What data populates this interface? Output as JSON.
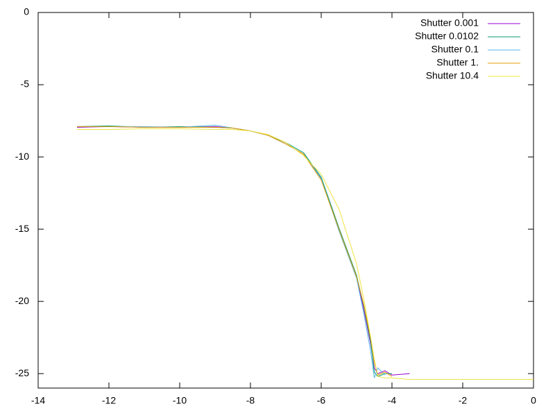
{
  "chart_data": {
    "type": "line",
    "x": [
      -12.9,
      -12,
      -11,
      -10,
      -9,
      -8.5,
      -8,
      -7.5,
      -7,
      -6.5,
      -6,
      -5.5,
      -5,
      -4.8,
      -4.6,
      -4.5,
      -4.4,
      -4.2,
      -4,
      -3.5,
      -2,
      0
    ],
    "series": [
      {
        "name": "Shutter 0.001",
        "color": "#9400d3",
        "values": [
          -7.95,
          -7.9,
          -7.95,
          -7.95,
          -7.9,
          -8.0,
          -8.2,
          -8.5,
          -9.1,
          -9.8,
          -11.5,
          -15.0,
          -18.3,
          -20.5,
          -23.0,
          -24.6,
          -25.0,
          -24.8,
          -25.1,
          -25.0,
          null,
          null
        ]
      },
      {
        "name": "Shutter 0.0102",
        "color": "#009e73",
        "values": [
          -7.9,
          -7.85,
          -7.95,
          -7.9,
          -7.95,
          -8.0,
          -8.2,
          -8.5,
          -9.0,
          -9.7,
          -11.4,
          -14.9,
          -18.2,
          -20.3,
          -22.8,
          -24.9,
          -25.2,
          -25.0,
          -25.0,
          null,
          null,
          null
        ]
      },
      {
        "name": "Shutter 0.1",
        "color": "#56b4e9",
        "values": [
          -7.9,
          -7.9,
          -7.9,
          -7.95,
          -7.8,
          -8.0,
          -8.2,
          -8.5,
          -9.1,
          -9.8,
          -11.5,
          -15.1,
          -18.4,
          -20.8,
          -23.5,
          -25.3,
          -24.6,
          -25.1,
          null,
          null,
          null,
          null
        ]
      },
      {
        "name": "Shutter 1.",
        "color": "#e69f00",
        "values": [
          -7.9,
          -7.9,
          -7.95,
          -7.95,
          -7.95,
          -8.0,
          -8.2,
          -8.5,
          -9.1,
          -9.8,
          -11.6,
          -15.0,
          -18.3,
          -20.2,
          -22.6,
          -24.2,
          -25.1,
          -24.9,
          -25.2,
          null,
          null,
          null
        ]
      },
      {
        "name": "Shutter 10.4",
        "color": "#f0e442",
        "values": [
          -8.1,
          -8.1,
          -8.05,
          -8.05,
          -8.1,
          -8.1,
          -8.2,
          -8.45,
          -9.0,
          -9.9,
          -11.2,
          -13.6,
          -17.4,
          -19.8,
          -22.5,
          -24.0,
          -25.2,
          -25.3,
          -25.3,
          -25.4,
          -25.4,
          -25.4
        ]
      }
    ],
    "xlim": [
      -14,
      0
    ],
    "xticks": [
      -14,
      -12,
      -10,
      -8,
      -6,
      -4,
      -2,
      0
    ],
    "ylim": [
      -26,
      0
    ],
    "yticks": [
      -25,
      -20,
      -15,
      -10,
      -5,
      0
    ]
  }
}
